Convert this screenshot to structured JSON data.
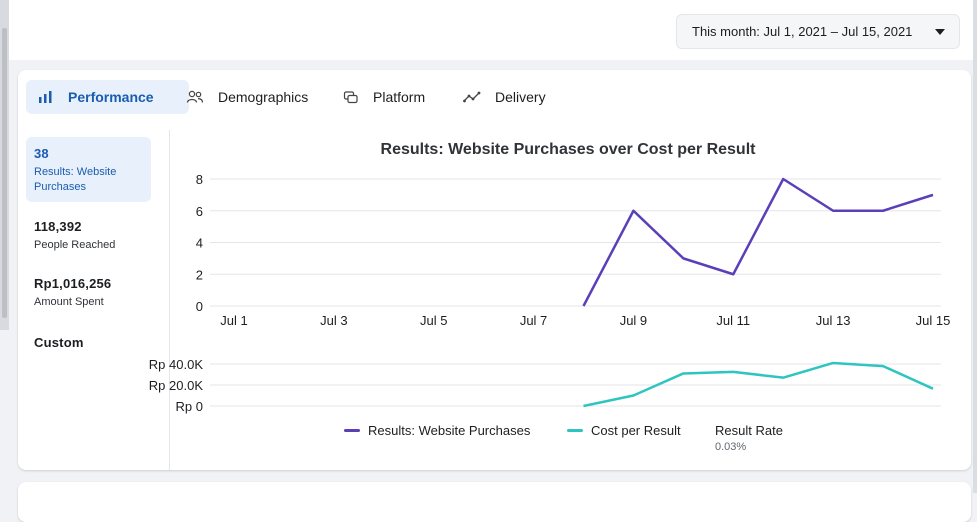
{
  "date_range": {
    "label": "This month: Jul 1, 2021 – Jul 15, 2021"
  },
  "tabs": [
    {
      "label": "Performance",
      "icon": "bar-chart-icon",
      "active": true
    },
    {
      "label": "Demographics",
      "icon": "people-icon",
      "active": false
    },
    {
      "label": "Platform",
      "icon": "platform-icon",
      "active": false
    },
    {
      "label": "Delivery",
      "icon": "delivery-icon",
      "active": false
    }
  ],
  "metrics": [
    {
      "value": "38",
      "label": "Results: Website Purchases",
      "active": true
    },
    {
      "value": "118,392",
      "label": "People Reached",
      "active": false
    },
    {
      "value": "Rp1,016,256",
      "label": "Amount Spent",
      "active": false
    }
  ],
  "custom_label": "Custom",
  "result_rate": {
    "label": "Result Rate",
    "value": "0.03%"
  },
  "colors": {
    "accent": "#1a5cb0",
    "purchases": "#5b3fb8",
    "cost": "#2ec4c0",
    "grid": "#e4e6eb"
  },
  "chart_data": [
    {
      "type": "line",
      "title": "Results: Website Purchases over Cost per Result",
      "x": [
        "Jul 1",
        "Jul 2",
        "Jul 3",
        "Jul 4",
        "Jul 5",
        "Jul 6",
        "Jul 7",
        "Jul 8",
        "Jul 9",
        "Jul 10",
        "Jul 11",
        "Jul 12",
        "Jul 13",
        "Jul 14",
        "Jul 15"
      ],
      "xticks": [
        "Jul 1",
        "Jul 3",
        "Jul 5",
        "Jul 7",
        "Jul 9",
        "Jul 11",
        "Jul 13",
        "Jul 15"
      ],
      "yticks": [
        "0",
        "2",
        "4",
        "6",
        "8"
      ],
      "ylim": [
        0,
        8
      ],
      "grid": true,
      "series": [
        {
          "name": "Results: Website Purchases",
          "values": [
            null,
            null,
            null,
            null,
            null,
            null,
            null,
            0,
            6,
            3,
            2,
            8,
            6,
            6,
            7
          ]
        }
      ]
    },
    {
      "type": "line",
      "yticks": [
        "Rp 0",
        "Rp 20.0K",
        "Rp 40.0K"
      ],
      "ylim": [
        0,
        40000
      ],
      "grid": true,
      "series": [
        {
          "name": "Cost per Result",
          "values": [
            null,
            null,
            null,
            null,
            null,
            null,
            null,
            0,
            10000,
            31000,
            32500,
            27000,
            41000,
            38000,
            16500
          ]
        }
      ]
    }
  ]
}
